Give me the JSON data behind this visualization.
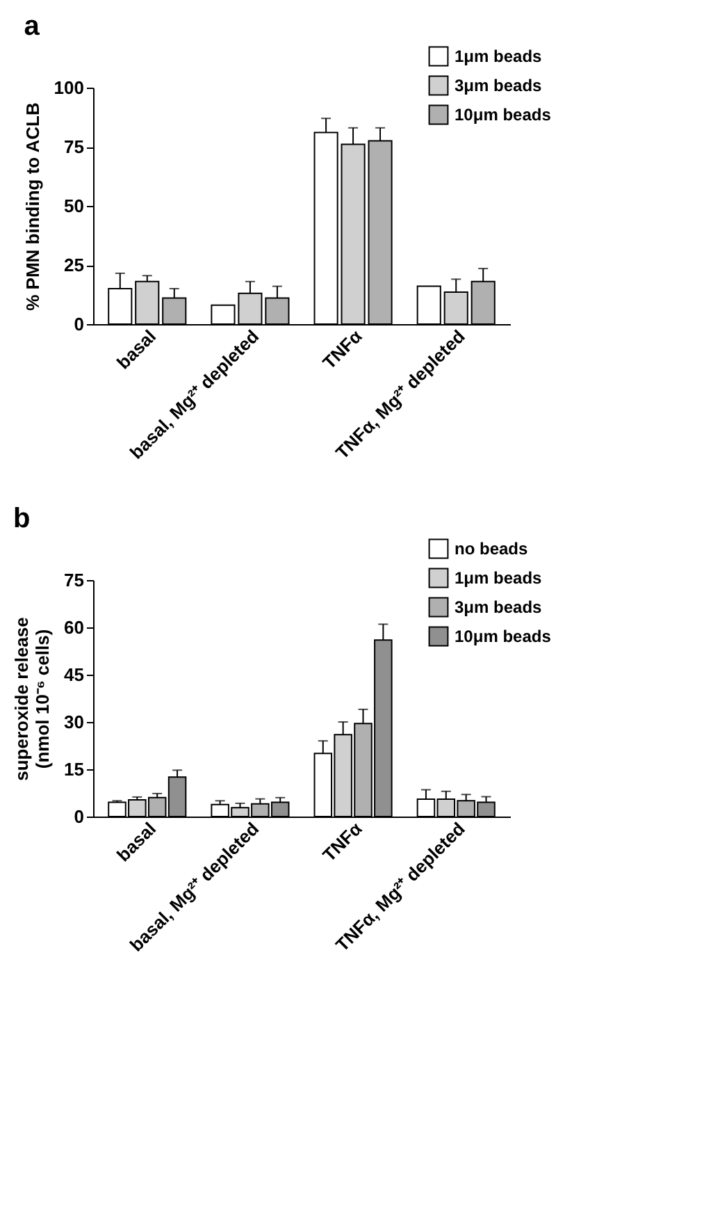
{
  "chart_data": [
    {
      "type": "bar",
      "title": "a",
      "ylabel": "% PMN binding to ACLB",
      "categories": [
        "basal",
        "basal, Mg²⁺ depleted",
        "TNFα",
        "TNFα, Mg²⁺ depleted"
      ],
      "series": [
        {
          "name": "1μm beads",
          "color": "#ffffff",
          "values": [
            15,
            8,
            81,
            16
          ],
          "errors": [
            [
              15,
              21.5
            ],
            null,
            [
              81,
              87
            ],
            null
          ]
        },
        {
          "name": "3μm beads",
          "color": "#d0d0d0",
          "values": [
            18,
            13,
            76,
            13.5
          ],
          "errors": [
            [
              18,
              20.5
            ],
            [
              13,
              18
            ],
            [
              76,
              83
            ],
            [
              13.5,
              19
            ]
          ]
        },
        {
          "name": "10μm beads",
          "color": "#b0b0b0",
          "values": [
            11,
            11,
            77.5,
            18
          ],
          "errors": [
            [
              11,
              15
            ],
            [
              11,
              16
            ],
            [
              77.5,
              83
            ],
            [
              18,
              23.5
            ]
          ]
        }
      ],
      "ylim": [
        0,
        100
      ],
      "yticks": [
        0,
        25,
        50,
        75,
        100
      ],
      "grid": false,
      "legend": "top right"
    },
    {
      "type": "bar",
      "title": "b",
      "ylabel": "superoxide release\n(nmol 10⁻⁶ cells)",
      "categories": [
        "basal",
        "basal, Mg²⁺ depleted",
        "TNFα",
        "TNFα, Mg²⁺ depleted"
      ],
      "series": [
        {
          "name": "no beads",
          "color": "#ffffff",
          "values": [
            4.5,
            3.8,
            20,
            5.5
          ],
          "errors": [
            [
              4.5,
              5
            ],
            [
              3.8,
              5
            ],
            [
              20,
              24
            ],
            [
              5.5,
              8.5
            ]
          ]
        },
        {
          "name": "1μm beads",
          "color": "#d0d0d0",
          "values": [
            5.3,
            2.8,
            26,
            5.5
          ],
          "errors": [
            [
              5.3,
              6.2
            ],
            [
              2.8,
              4.2
            ],
            [
              26,
              30
            ],
            [
              5.5,
              8
            ]
          ]
        },
        {
          "name": "3μm beads",
          "color": "#b0b0b0",
          "values": [
            6,
            4,
            29.5,
            5
          ],
          "errors": [
            [
              6,
              7.3
            ],
            [
              4,
              5.6
            ],
            [
              29.5,
              34
            ],
            [
              5,
              7
            ]
          ]
        },
        {
          "name": "10μm beads",
          "color": "#909090",
          "values": [
            12.5,
            4.5,
            56,
            4.5
          ],
          "errors": [
            [
              12.5,
              14.7
            ],
            [
              4.5,
              6
            ],
            [
              56,
              61
            ],
            [
              4.5,
              6.3
            ]
          ]
        }
      ],
      "ylim": [
        0,
        75
      ],
      "yticks": [
        0,
        15,
        30,
        45,
        60,
        75
      ],
      "grid": false,
      "legend": "top right"
    }
  ]
}
